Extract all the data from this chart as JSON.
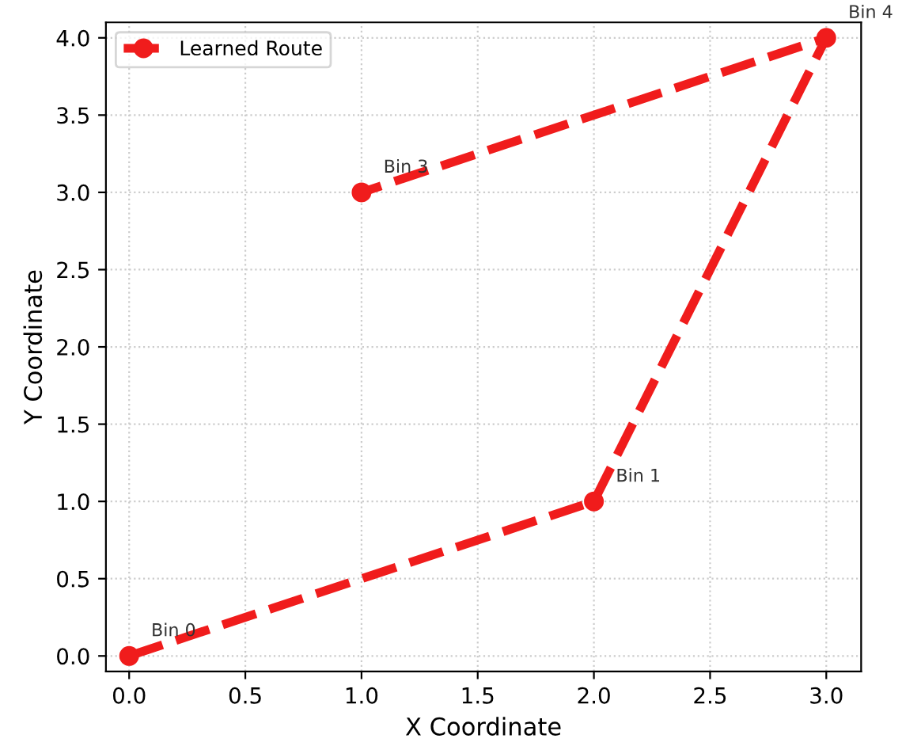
{
  "chart_data": {
    "type": "line",
    "xlabel": "X Coordinate",
    "ylabel": "Y Coordinate",
    "x": [
      0,
      2,
      3,
      1
    ],
    "series": [
      {
        "name": "Learned Route",
        "color": "#f01c1c",
        "values": [
          0,
          1,
          4,
          3
        ]
      }
    ],
    "xlim": [
      -0.1,
      3.15
    ],
    "ylim": [
      -0.1,
      4.1
    ],
    "xticks": [
      {
        "value": 0,
        "label": "0.0"
      },
      0.5,
      {
        "value": 1,
        "label": "1.0"
      },
      1.5,
      {
        "value": 2,
        "label": "2.0"
      },
      2.5,
      {
        "value": 3,
        "label": "3.0"
      }
    ],
    "yticks": [
      {
        "value": 0,
        "label": "0.0"
      },
      0.5,
      {
        "value": 1,
        "label": "1.0"
      },
      1.5,
      {
        "value": 2,
        "label": "2.0"
      },
      2.5,
      {
        "value": 3,
        "label": "3.0"
      },
      3.5,
      {
        "value": 4,
        "label": "4.0"
      }
    ],
    "annotations": [
      {
        "text": "Bin 0",
        "x": 0,
        "y": 0
      },
      {
        "text": "Bin 1",
        "x": 2,
        "y": 1
      },
      {
        "text": "Bin 4",
        "x": 3,
        "y": 4
      },
      {
        "text": "Bin 3",
        "x": 1,
        "y": 3
      }
    ],
    "grid": true,
    "legend": "top left",
    "marker": "circle",
    "line_style": "dashed"
  }
}
